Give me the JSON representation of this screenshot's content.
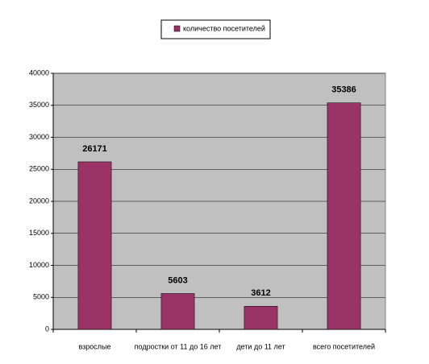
{
  "chart_data": {
    "type": "bar",
    "categories": [
      "взрослые",
      "подростки от 11 до 16 лет",
      "дети до 11 лет",
      "всего посетителей"
    ],
    "series": [
      {
        "name": "количество посетителей",
        "color": "#993366",
        "values": [
          26171,
          5603,
          3612,
          35386
        ]
      }
    ],
    "ylim": [
      0,
      40000
    ],
    "yticks": [
      0,
      5000,
      10000,
      15000,
      20000,
      25000,
      30000,
      35000,
      40000
    ],
    "grid": true,
    "legend": "top",
    "plot_background": "#c0c0c0"
  }
}
